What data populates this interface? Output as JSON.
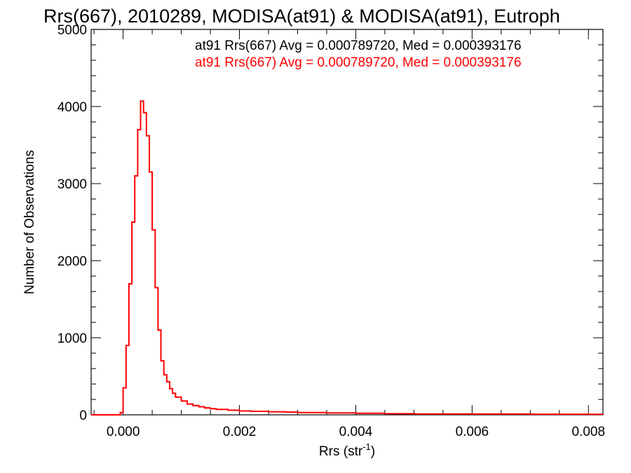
{
  "chart_data": {
    "type": "line",
    "title": "Rrs(667), 2010289, MODISA(at91) & MODISA(at91), Eutroph",
    "xlabel": "Rrs (str",
    "xlabel_sup": "-1",
    "xlabel_close": ")",
    "ylabel": "Number of Observations",
    "xlim": [
      -0.00055,
      0.00825
    ],
    "ylim": [
      0,
      5000
    ],
    "x_ticks": [
      0.0,
      0.002,
      0.004,
      0.006,
      0.008
    ],
    "x_tick_labels": [
      "0.000",
      "0.002",
      "0.004",
      "0.006",
      "0.008"
    ],
    "y_ticks": [
      0,
      1000,
      2000,
      3000,
      4000,
      5000
    ],
    "y_tick_labels": [
      "0",
      "1000",
      "2000",
      "3000",
      "4000",
      "5000"
    ],
    "grid": false,
    "legend_position": "top-right",
    "series": [
      {
        "name": "at91 Rrs(667) Avg = 0.000789720, Med = 0.000393176",
        "color": "#000000",
        "values": []
      },
      {
        "name": "at91 Rrs(667) Avg = 0.000789720, Med = 0.000393176",
        "color": "#ff0000",
        "x": [
          -0.00055,
          -0.0001,
          -5e-05,
          0.0,
          5e-05,
          0.0001,
          0.00015,
          0.0002,
          0.00025,
          0.0003,
          0.00035,
          0.0004,
          0.00045,
          0.0005,
          0.00055,
          0.0006,
          0.00065,
          0.0007,
          0.00075,
          0.0008,
          0.00085,
          0.0009,
          0.001,
          0.0011,
          0.0012,
          0.0013,
          0.0014,
          0.0015,
          0.0016,
          0.0018,
          0.002,
          0.0022,
          0.0025,
          0.0028,
          0.003,
          0.0035,
          0.004,
          0.0045,
          0.005,
          0.006,
          0.007,
          0.008,
          0.00825
        ],
        "y": [
          0,
          0,
          30,
          350,
          900,
          1700,
          2500,
          3100,
          3700,
          4070,
          3920,
          3620,
          3150,
          2400,
          1650,
          1100,
          700,
          520,
          430,
          340,
          280,
          230,
          180,
          140,
          120,
          105,
          90,
          80,
          70,
          60,
          50,
          45,
          40,
          35,
          30,
          25,
          20,
          15,
          12,
          10,
          8,
          6,
          5
        ]
      }
    ]
  }
}
